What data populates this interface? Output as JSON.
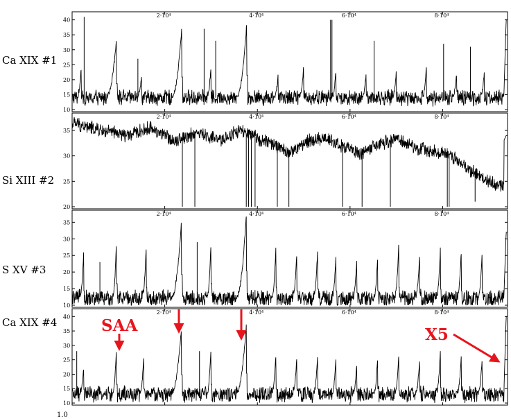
{
  "page": {
    "background": "#ffffff"
  },
  "colors": {
    "trace": "#000000",
    "frame": "#000000",
    "annotation": "#e8141c"
  },
  "bottom_label": "1.0",
  "annotations": {
    "saa": "SAA",
    "x5": "X5"
  },
  "chart_data": [
    {
      "type": "line",
      "title": "",
      "label": "Ca XIX #1",
      "xlabel": "",
      "ylabel": "",
      "xlim": [
        0,
        94000
      ],
      "ylim": [
        10,
        42
      ],
      "x_ticks": [
        {
          "v": 20000,
          "label": "2·10⁴"
        },
        {
          "v": 40000,
          "label": "4·10⁴"
        },
        {
          "v": 60000,
          "label": "6·10⁴"
        },
        {
          "v": 80000,
          "label": "8·10⁴"
        }
      ],
      "y_ticks": [
        {
          "v": 10,
          "label": "10"
        },
        {
          "v": 15,
          "label": "15"
        },
        {
          "v": 20,
          "label": "20"
        },
        {
          "v": 25,
          "label": "25"
        },
        {
          "v": 30,
          "label": "30"
        },
        {
          "v": 35,
          "label": "35"
        },
        {
          "v": 40,
          "label": "40"
        }
      ],
      "base": 14,
      "noise": 1.5,
      "drift": [],
      "peaks": [
        {
          "x": 2000,
          "y": 25
        },
        {
          "x": 9600,
          "y": 34
        },
        {
          "x": 15000,
          "y": 21
        },
        {
          "x": 23700,
          "y": 38
        },
        {
          "x": 30000,
          "y": 25
        },
        {
          "x": 37700,
          "y": 39
        },
        {
          "x": 44500,
          "y": 22
        },
        {
          "x": 50000,
          "y": 25
        },
        {
          "x": 57000,
          "y": 24
        },
        {
          "x": 63500,
          "y": 23
        },
        {
          "x": 70000,
          "y": 23
        },
        {
          "x": 76500,
          "y": 25
        },
        {
          "x": 83000,
          "y": 22
        },
        {
          "x": 89000,
          "y": 23
        }
      ],
      "spikes": [
        {
          "x": 2600,
          "y": 41
        },
        {
          "x": 14200,
          "y": 27
        },
        {
          "x": 28500,
          "y": 37
        },
        {
          "x": 31000,
          "y": 33
        },
        {
          "x": 55800,
          "y": 40
        },
        {
          "x": 56100,
          "y": 40
        },
        {
          "x": 65200,
          "y": 33
        },
        {
          "x": 80200,
          "y": 32
        },
        {
          "x": 86000,
          "y": 31
        }
      ],
      "flare_start": 93200,
      "flare_peak": 40
    },
    {
      "type": "line",
      "title": "",
      "label": "Si XIII #2",
      "xlabel": "",
      "ylabel": "",
      "xlim": [
        0,
        94000
      ],
      "ylim": [
        20,
        38
      ],
      "x_ticks": [
        {
          "v": 20000,
          "label": "2·10⁴"
        },
        {
          "v": 40000,
          "label": "4·10⁴"
        },
        {
          "v": 60000,
          "label": "6·10⁴"
        },
        {
          "v": 80000,
          "label": "8·10⁴"
        }
      ],
      "y_ticks": [
        {
          "v": 20,
          "label": "20"
        },
        {
          "v": 25,
          "label": "25"
        },
        {
          "v": 30,
          "label": "30"
        },
        {
          "v": 35,
          "label": "35"
        }
      ],
      "base": 33,
      "noise": 0.8,
      "drift": [
        {
          "x": 0,
          "y": 36.5
        },
        {
          "x": 6000,
          "y": 35
        },
        {
          "x": 12000,
          "y": 34
        },
        {
          "x": 17000,
          "y": 35.5
        },
        {
          "x": 22000,
          "y": 33
        },
        {
          "x": 27000,
          "y": 34.5
        },
        {
          "x": 32000,
          "y": 33
        },
        {
          "x": 36000,
          "y": 35
        },
        {
          "x": 40000,
          "y": 33.5
        },
        {
          "x": 44000,
          "y": 32
        },
        {
          "x": 47000,
          "y": 30.5
        },
        {
          "x": 51000,
          "y": 33
        },
        {
          "x": 55000,
          "y": 33.5
        },
        {
          "x": 58000,
          "y": 32
        },
        {
          "x": 62000,
          "y": 30.5
        },
        {
          "x": 66000,
          "y": 32
        },
        {
          "x": 70000,
          "y": 33.5
        },
        {
          "x": 74000,
          "y": 31.5
        },
        {
          "x": 78000,
          "y": 31
        },
        {
          "x": 82000,
          "y": 30
        },
        {
          "x": 86000,
          "y": 27
        },
        {
          "x": 90000,
          "y": 25
        },
        {
          "x": 93000,
          "y": 24
        },
        {
          "x": 94000,
          "y": 24
        }
      ],
      "peaks": [],
      "spikes": [
        {
          "x": 23800,
          "y": 20
        },
        {
          "x": 26500,
          "y": 20
        },
        {
          "x": 37600,
          "y": 20
        },
        {
          "x": 38100,
          "y": 20
        },
        {
          "x": 38700,
          "y": 20
        },
        {
          "x": 39500,
          "y": 20
        },
        {
          "x": 44300,
          "y": 20
        },
        {
          "x": 46800,
          "y": 20
        },
        {
          "x": 58400,
          "y": 20
        },
        {
          "x": 62600,
          "y": 20
        },
        {
          "x": 68700,
          "y": 20
        },
        {
          "x": 81000,
          "y": 20
        },
        {
          "x": 81400,
          "y": 20
        },
        {
          "x": 87000,
          "y": 21
        }
      ],
      "flare_start": 93200,
      "flare_peak": 34
    },
    {
      "type": "line",
      "title": "",
      "label": "S XV #3",
      "xlabel": "",
      "ylabel": "",
      "xlim": [
        0,
        94000
      ],
      "ylim": [
        10,
        38
      ],
      "x_ticks": [
        {
          "v": 20000,
          "label": "2·10⁴"
        },
        {
          "v": 40000,
          "label": "4·10⁴"
        },
        {
          "v": 60000,
          "label": "6·10⁴"
        },
        {
          "v": 80000,
          "label": "8·10⁴"
        }
      ],
      "y_ticks": [
        {
          "v": 10,
          "label": "10"
        },
        {
          "v": 15,
          "label": "15"
        },
        {
          "v": 20,
          "label": "20"
        },
        {
          "v": 25,
          "label": "25"
        },
        {
          "v": 30,
          "label": "30"
        },
        {
          "v": 35,
          "label": "35"
        }
      ],
      "base": 12,
      "noise": 1.5,
      "drift": [],
      "peaks": [
        {
          "x": 2500,
          "y": 26
        },
        {
          "x": 9600,
          "y": 30
        },
        {
          "x": 16000,
          "y": 28
        },
        {
          "x": 23600,
          "y": 35
        },
        {
          "x": 30000,
          "y": 30
        },
        {
          "x": 37600,
          "y": 37
        },
        {
          "x": 44000,
          "y": 28
        },
        {
          "x": 48500,
          "y": 26
        },
        {
          "x": 53000,
          "y": 27
        },
        {
          "x": 57000,
          "y": 26
        },
        {
          "x": 61500,
          "y": 25
        },
        {
          "x": 66000,
          "y": 26
        },
        {
          "x": 70500,
          "y": 28
        },
        {
          "x": 75000,
          "y": 25
        },
        {
          "x": 79500,
          "y": 27
        },
        {
          "x": 84000,
          "y": 26
        },
        {
          "x": 88500,
          "y": 25
        }
      ],
      "spikes": [
        {
          "x": 6000,
          "y": 23
        },
        {
          "x": 27000,
          "y": 29
        }
      ],
      "flare_start": 93200,
      "flare_peak": 32
    },
    {
      "type": "line",
      "title": "",
      "label": "Ca XIX #4",
      "xlabel": "",
      "ylabel": "",
      "xlim": [
        0,
        94000
      ],
      "ylim": [
        10,
        42
      ],
      "x_ticks": [
        {
          "v": 20000,
          "label": "2·10⁴"
        },
        {
          "v": 40000,
          "label": "4·10⁴"
        },
        {
          "v": 60000,
          "label": "6·10⁴"
        },
        {
          "v": 80000,
          "label": "8·10⁴"
        }
      ],
      "y_ticks": [
        {
          "v": 10,
          "label": "10"
        },
        {
          "v": 15,
          "label": "15"
        },
        {
          "v": 20,
          "label": "20"
        },
        {
          "v": 25,
          "label": "25"
        },
        {
          "v": 30,
          "label": "30"
        },
        {
          "v": 35,
          "label": "35"
        },
        {
          "v": 40,
          "label": "40"
        }
      ],
      "base": 13,
      "noise": 1.6,
      "drift": [],
      "peaks": [
        {
          "x": 2500,
          "y": 22
        },
        {
          "x": 9600,
          "y": 30
        },
        {
          "x": 15500,
          "y": 27
        },
        {
          "x": 23600,
          "y": 36
        },
        {
          "x": 30000,
          "y": 30
        },
        {
          "x": 37600,
          "y": 37
        },
        {
          "x": 44000,
          "y": 27
        },
        {
          "x": 48500,
          "y": 26
        },
        {
          "x": 53000,
          "y": 27
        },
        {
          "x": 57000,
          "y": 27
        },
        {
          "x": 61500,
          "y": 25
        },
        {
          "x": 66000,
          "y": 27
        },
        {
          "x": 70500,
          "y": 26
        },
        {
          "x": 75000,
          "y": 25
        },
        {
          "x": 79500,
          "y": 28
        },
        {
          "x": 84000,
          "y": 26
        },
        {
          "x": 88500,
          "y": 25
        }
      ],
      "spikes": [
        {
          "x": 1000,
          "y": 28
        },
        {
          "x": 27500,
          "y": 28
        }
      ],
      "flare_start": 93200,
      "flare_peak": 40
    }
  ]
}
